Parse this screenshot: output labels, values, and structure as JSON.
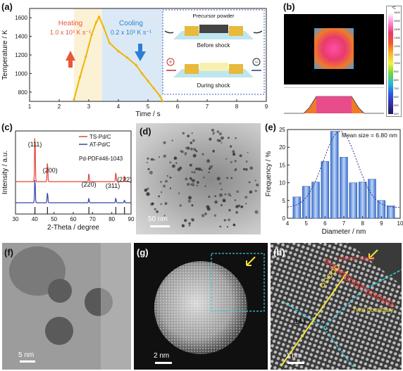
{
  "panels": {
    "a": {
      "label": "(a)",
      "heating_title": "Heating",
      "heating_rate": "1.0 x 10³ K s⁻¹",
      "cooling_title": "Cooling",
      "cooling_rate": "0.2 x 10³ K s⁻¹",
      "inset_precursor": "Precursor powder",
      "inset_before": "Before shock",
      "inset_during": "During shock",
      "inset_plus": "+",
      "inset_minus": "−"
    },
    "b": {
      "label": "(b)",
      "scale_unit": "°C",
      "scale_ticks": [
        "1600",
        "1500",
        "1400",
        "1300",
        "1200",
        "1100",
        "1000",
        "900",
        "800",
        "700",
        "600",
        "500",
        "400"
      ]
    },
    "c": {
      "label": "(c)",
      "peak_111": "(111)",
      "peak_200": "(200)",
      "peak_220": "(220)",
      "peak_311": "(311)",
      "peak_222": "(222)",
      "ref_label": "Pd-PDF#46-1043"
    },
    "d": {
      "label": "(d)",
      "scalebar": "50 nm"
    },
    "e": {
      "label": "(e)",
      "annotation": "Mean size = 6.80 nm"
    },
    "f": {
      "label": "(f)",
      "scalebar": "5 nm"
    },
    "g": {
      "label": "(g)",
      "scalebar": "2 nm"
    },
    "h": {
      "label": "(h)",
      "scalebar": "1 nm",
      "atomic_steps": "Atomic steps",
      "twin_boundary": "Twin boundary",
      "angle": "141°"
    }
  },
  "chart_data": [
    {
      "panel": "a",
      "type": "line",
      "xlabel": "Time / s",
      "ylabel": "Temperature / K",
      "xlim": [
        1,
        9
      ],
      "ylim": [
        700,
        1700
      ],
      "xticks": [
        1,
        2,
        3,
        4,
        5,
        6,
        7,
        8,
        9
      ],
      "yticks": [
        800,
        1000,
        1200,
        1400,
        1600
      ],
      "series": [
        {
          "x": [
            2.5,
            2.7,
            2.9,
            3.1,
            3.25,
            3.35,
            3.5,
            3.7,
            4.0,
            4.3,
            4.6,
            4.8,
            5.0,
            5.2,
            5.4,
            5.5
          ],
          "y": [
            720,
            960,
            1180,
            1420,
            1550,
            1610,
            1500,
            1330,
            1240,
            1170,
            1090,
            1000,
            920,
            840,
            760,
            700
          ]
        }
      ],
      "colors": {
        "line": "#f0b400",
        "heating": "#e8573a",
        "cooling": "#2e7fd1"
      }
    },
    {
      "panel": "c",
      "type": "line",
      "xlabel": "2-Theta / degree",
      "ylabel": "Intensity / a.u.",
      "xlim": [
        30,
        90
      ],
      "xticks": [
        30,
        40,
        50,
        60,
        70,
        80,
        90
      ],
      "series": [
        {
          "name": "TS-Pd/C",
          "color": "#e8443a",
          "peaks": [
            [
              40.1,
              1.0
            ],
            [
              46.6,
              0.42
            ],
            [
              68.1,
              0.18
            ],
            [
              82.1,
              0.2
            ],
            [
              86.6,
              0.12
            ]
          ]
        },
        {
          "name": "AT-Pd/C",
          "color": "#3447a8",
          "peaks": [
            [
              40.1,
              0.75
            ],
            [
              46.6,
              0.32
            ],
            [
              68.1,
              0.13
            ],
            [
              82.1,
              0.14
            ],
            [
              86.6,
              0.08
            ]
          ]
        }
      ],
      "reference_lines": [
        40.1,
        46.6,
        68.1,
        82.1,
        86.6
      ]
    },
    {
      "panel": "e",
      "type": "bar",
      "xlabel": "Diameter / nm",
      "ylabel": "Frequency / %",
      "xlim": [
        4,
        10
      ],
      "ylim": [
        0,
        25
      ],
      "xticks": [
        4,
        5,
        6,
        7,
        8,
        9,
        10
      ],
      "yticks": [
        0,
        5,
        10,
        15,
        20,
        25
      ],
      "categories": [
        4.5,
        5.0,
        5.5,
        6.0,
        6.5,
        7.0,
        7.5,
        8.0,
        8.5,
        9.0,
        9.5
      ],
      "values": [
        6,
        9,
        10.2,
        16,
        24.5,
        17.2,
        10,
        10.2,
        11,
        5,
        3.5
      ],
      "fit": "gaussian"
    }
  ]
}
